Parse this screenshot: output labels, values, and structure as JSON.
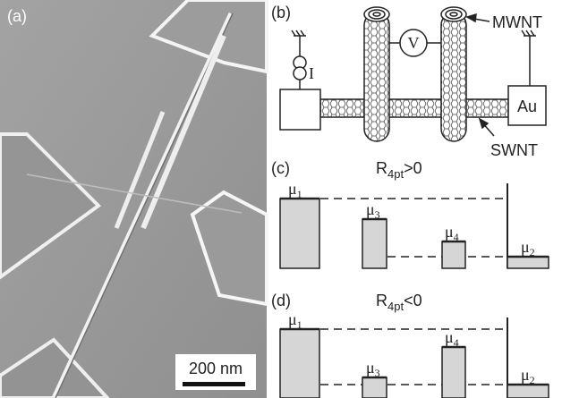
{
  "panel_a": {
    "label": "(a)",
    "scale_bar": "200 nm"
  },
  "panel_b": {
    "label": "(b)",
    "mwnt": "MWNT",
    "swnt": "SWNT",
    "electrode": "Au",
    "voltmeter": "V",
    "current": "I"
  },
  "panel_c": {
    "label": "(c)",
    "title": {
      "main": "R",
      "sub": "4pt",
      "rest": ">0"
    },
    "levels": [
      {
        "symbol": "μ",
        "sub": "1"
      },
      {
        "symbol": "μ",
        "sub": "3"
      },
      {
        "symbol": "μ",
        "sub": "4"
      },
      {
        "symbol": "μ",
        "sub": "2"
      }
    ]
  },
  "panel_d": {
    "label": "(d)",
    "title": {
      "main": "R",
      "sub": "4pt",
      "rest": "<0"
    },
    "levels": [
      {
        "symbol": "μ",
        "sub": "1"
      },
      {
        "symbol": "μ",
        "sub": "3"
      },
      {
        "symbol": "μ",
        "sub": "4"
      },
      {
        "symbol": "μ",
        "sub": "2"
      }
    ]
  }
}
